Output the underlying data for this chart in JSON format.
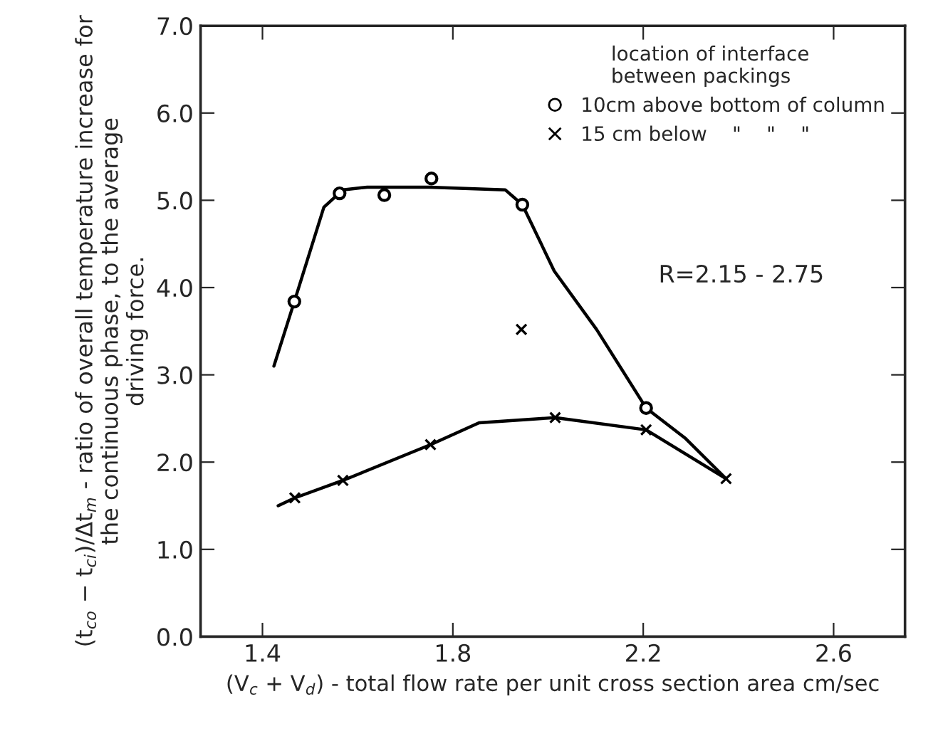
{
  "chart_data": {
    "type": "scatter",
    "xlabel": "(V$_{c}$ + V$_{d}$) - total flow rate per unit cross section area cm/sec",
    "ylabel": "(t$_{co}$ − t$_{ci}$)/Δt$_{m}$ - ratio of overall temperature increase for\nthe continuous phase, to the average\ndriving force.",
    "legend_title": "location of interface\nbetween packings",
    "annotations": [
      "R=2.15 - 2.75"
    ],
    "series": [
      {
        "name": "10cm above bottom of column",
        "marker": "circle",
        "color": "#000000",
        "x": [
          1.467,
          1.562,
          1.656,
          1.755,
          1.946,
          2.206
        ],
        "values": [
          3.84,
          5.08,
          5.06,
          5.25,
          4.95,
          2.62
        ]
      },
      {
        "name": "15 cm below    \"    \"    \"",
        "marker": "cross",
        "color": "#000000",
        "x": [
          1.468,
          1.569,
          1.753,
          2.015,
          2.206,
          2.374,
          1.944
        ],
        "values": [
          1.59,
          1.79,
          2.2,
          2.51,
          2.37,
          1.81,
          3.52
        ]
      },
      {
        "type": "line",
        "marker": "none",
        "color": "#000000",
        "x": [
          1.424,
          1.467,
          1.529,
          1.569,
          1.62,
          1.75,
          1.91,
          1.946,
          2.013,
          2.102,
          2.206,
          2.289,
          2.374
        ],
        "values": [
          3.1,
          3.84,
          4.92,
          5.12,
          5.15,
          5.15,
          5.12,
          4.95,
          4.19,
          3.52,
          2.62,
          2.27,
          1.81
        ]
      },
      {
        "type": "line",
        "marker": "none",
        "color": "#000000",
        "x": [
          1.433,
          1.468,
          1.569,
          1.753,
          1.855,
          2.015,
          2.206,
          2.374
        ],
        "values": [
          1.5,
          1.59,
          1.79,
          2.2,
          2.45,
          2.51,
          2.37,
          1.81
        ]
      }
    ],
    "xlim": [
      1.27,
      2.75
    ],
    "xticks": [
      1.4,
      1.8,
      2.2,
      2.6
    ],
    "ylim": [
      0,
      7
    ],
    "yticks": [
      {
        "value": 0,
        "label": "0.0"
      },
      {
        "value": 1,
        "label": "1.0"
      },
      {
        "value": 2,
        "label": "2.0"
      },
      {
        "value": 3,
        "label": "3.0"
      },
      {
        "value": 4,
        "label": "4.0"
      },
      {
        "value": 5,
        "label": "5.0"
      },
      {
        "value": 6,
        "label": "6.0"
      },
      {
        "value": 7,
        "label": "7.0"
      }
    ],
    "grid": false,
    "legend": "top right"
  }
}
